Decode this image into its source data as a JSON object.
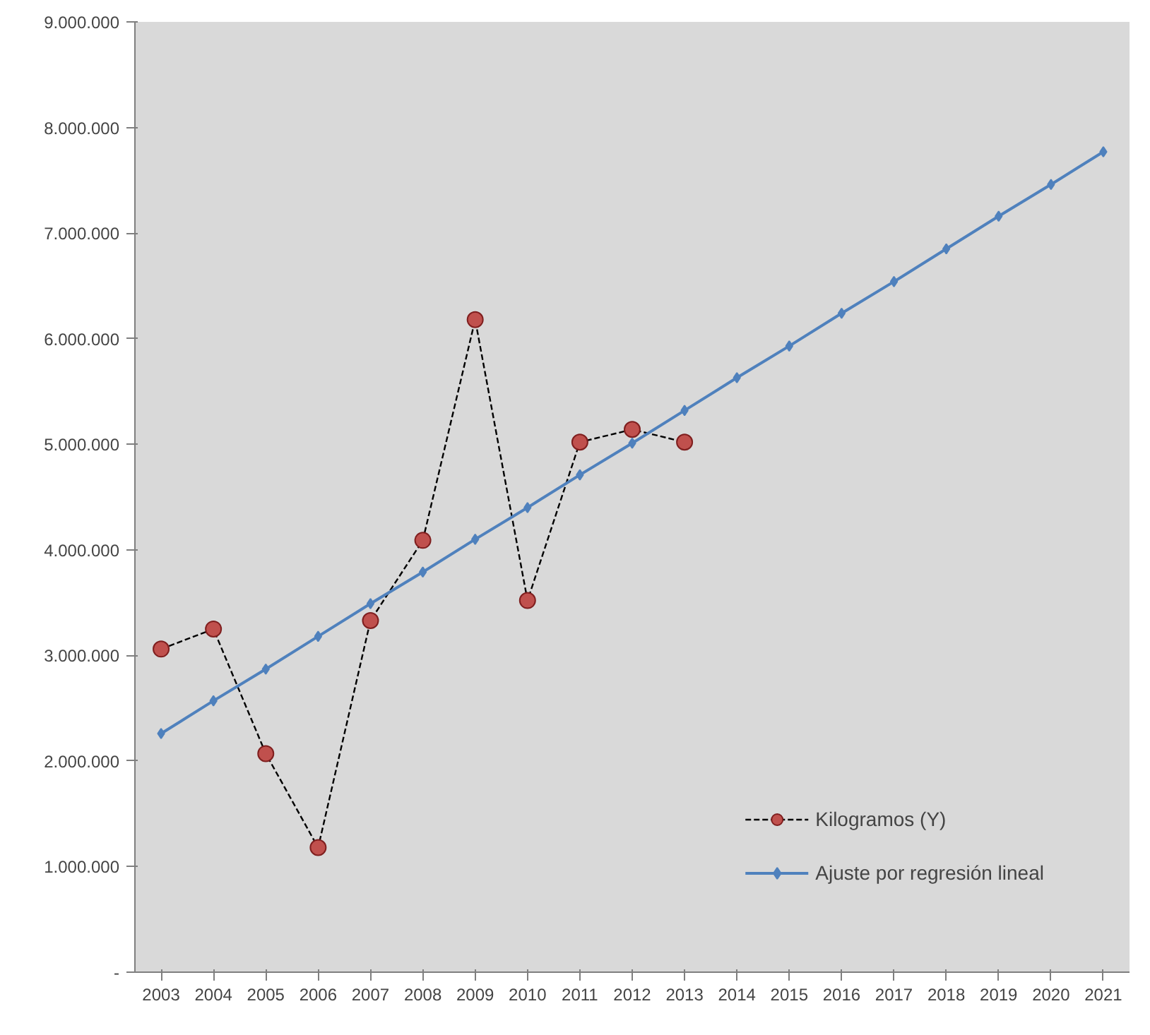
{
  "chart_data": {
    "type": "line",
    "categories": [
      "2003",
      "2004",
      "2005",
      "2006",
      "2007",
      "2008",
      "2009",
      "2010",
      "2011",
      "2012",
      "2013",
      "2014",
      "2015",
      "2016",
      "2017",
      "2018",
      "2019",
      "2020",
      "2021"
    ],
    "series": [
      {
        "name": "Kilogramos (Y)",
        "color": "#c0504d",
        "marker": "circle",
        "line_style": "dashed",
        "values": [
          3060000,
          3250000,
          2070000,
          1180000,
          3330000,
          4090000,
          6180000,
          3520000,
          5020000,
          5140000,
          5020000,
          null,
          null,
          null,
          null,
          null,
          null,
          null,
          null
        ]
      },
      {
        "name": "Ajuste por regresión lineal",
        "color": "#4f81bd",
        "marker": "diamond",
        "line_style": "solid",
        "values": [
          2260000,
          2570000,
          2870000,
          3180000,
          3490000,
          3790000,
          4100000,
          4400000,
          4710000,
          5010000,
          5320000,
          5630000,
          5930000,
          6240000,
          6540000,
          6850000,
          7160000,
          7460000,
          7770000
        ]
      }
    ],
    "ylim": [
      0,
      9000000
    ],
    "yticks": [
      {
        "value": 0,
        "label": "-"
      },
      {
        "value": 1000000,
        "label": "1.000.000"
      },
      {
        "value": 2000000,
        "label": "2.000.000"
      },
      {
        "value": 3000000,
        "label": "3.000.000"
      },
      {
        "value": 4000000,
        "label": "4.000.000"
      },
      {
        "value": 5000000,
        "label": "5.000.000"
      },
      {
        "value": 6000000,
        "label": "6.000.000"
      },
      {
        "value": 7000000,
        "label": "7.000.000"
      },
      {
        "value": 8000000,
        "label": "8.000.000"
      },
      {
        "value": 9000000,
        "label": "9.000.000"
      }
    ],
    "grid": false,
    "legend": "bottom right"
  }
}
